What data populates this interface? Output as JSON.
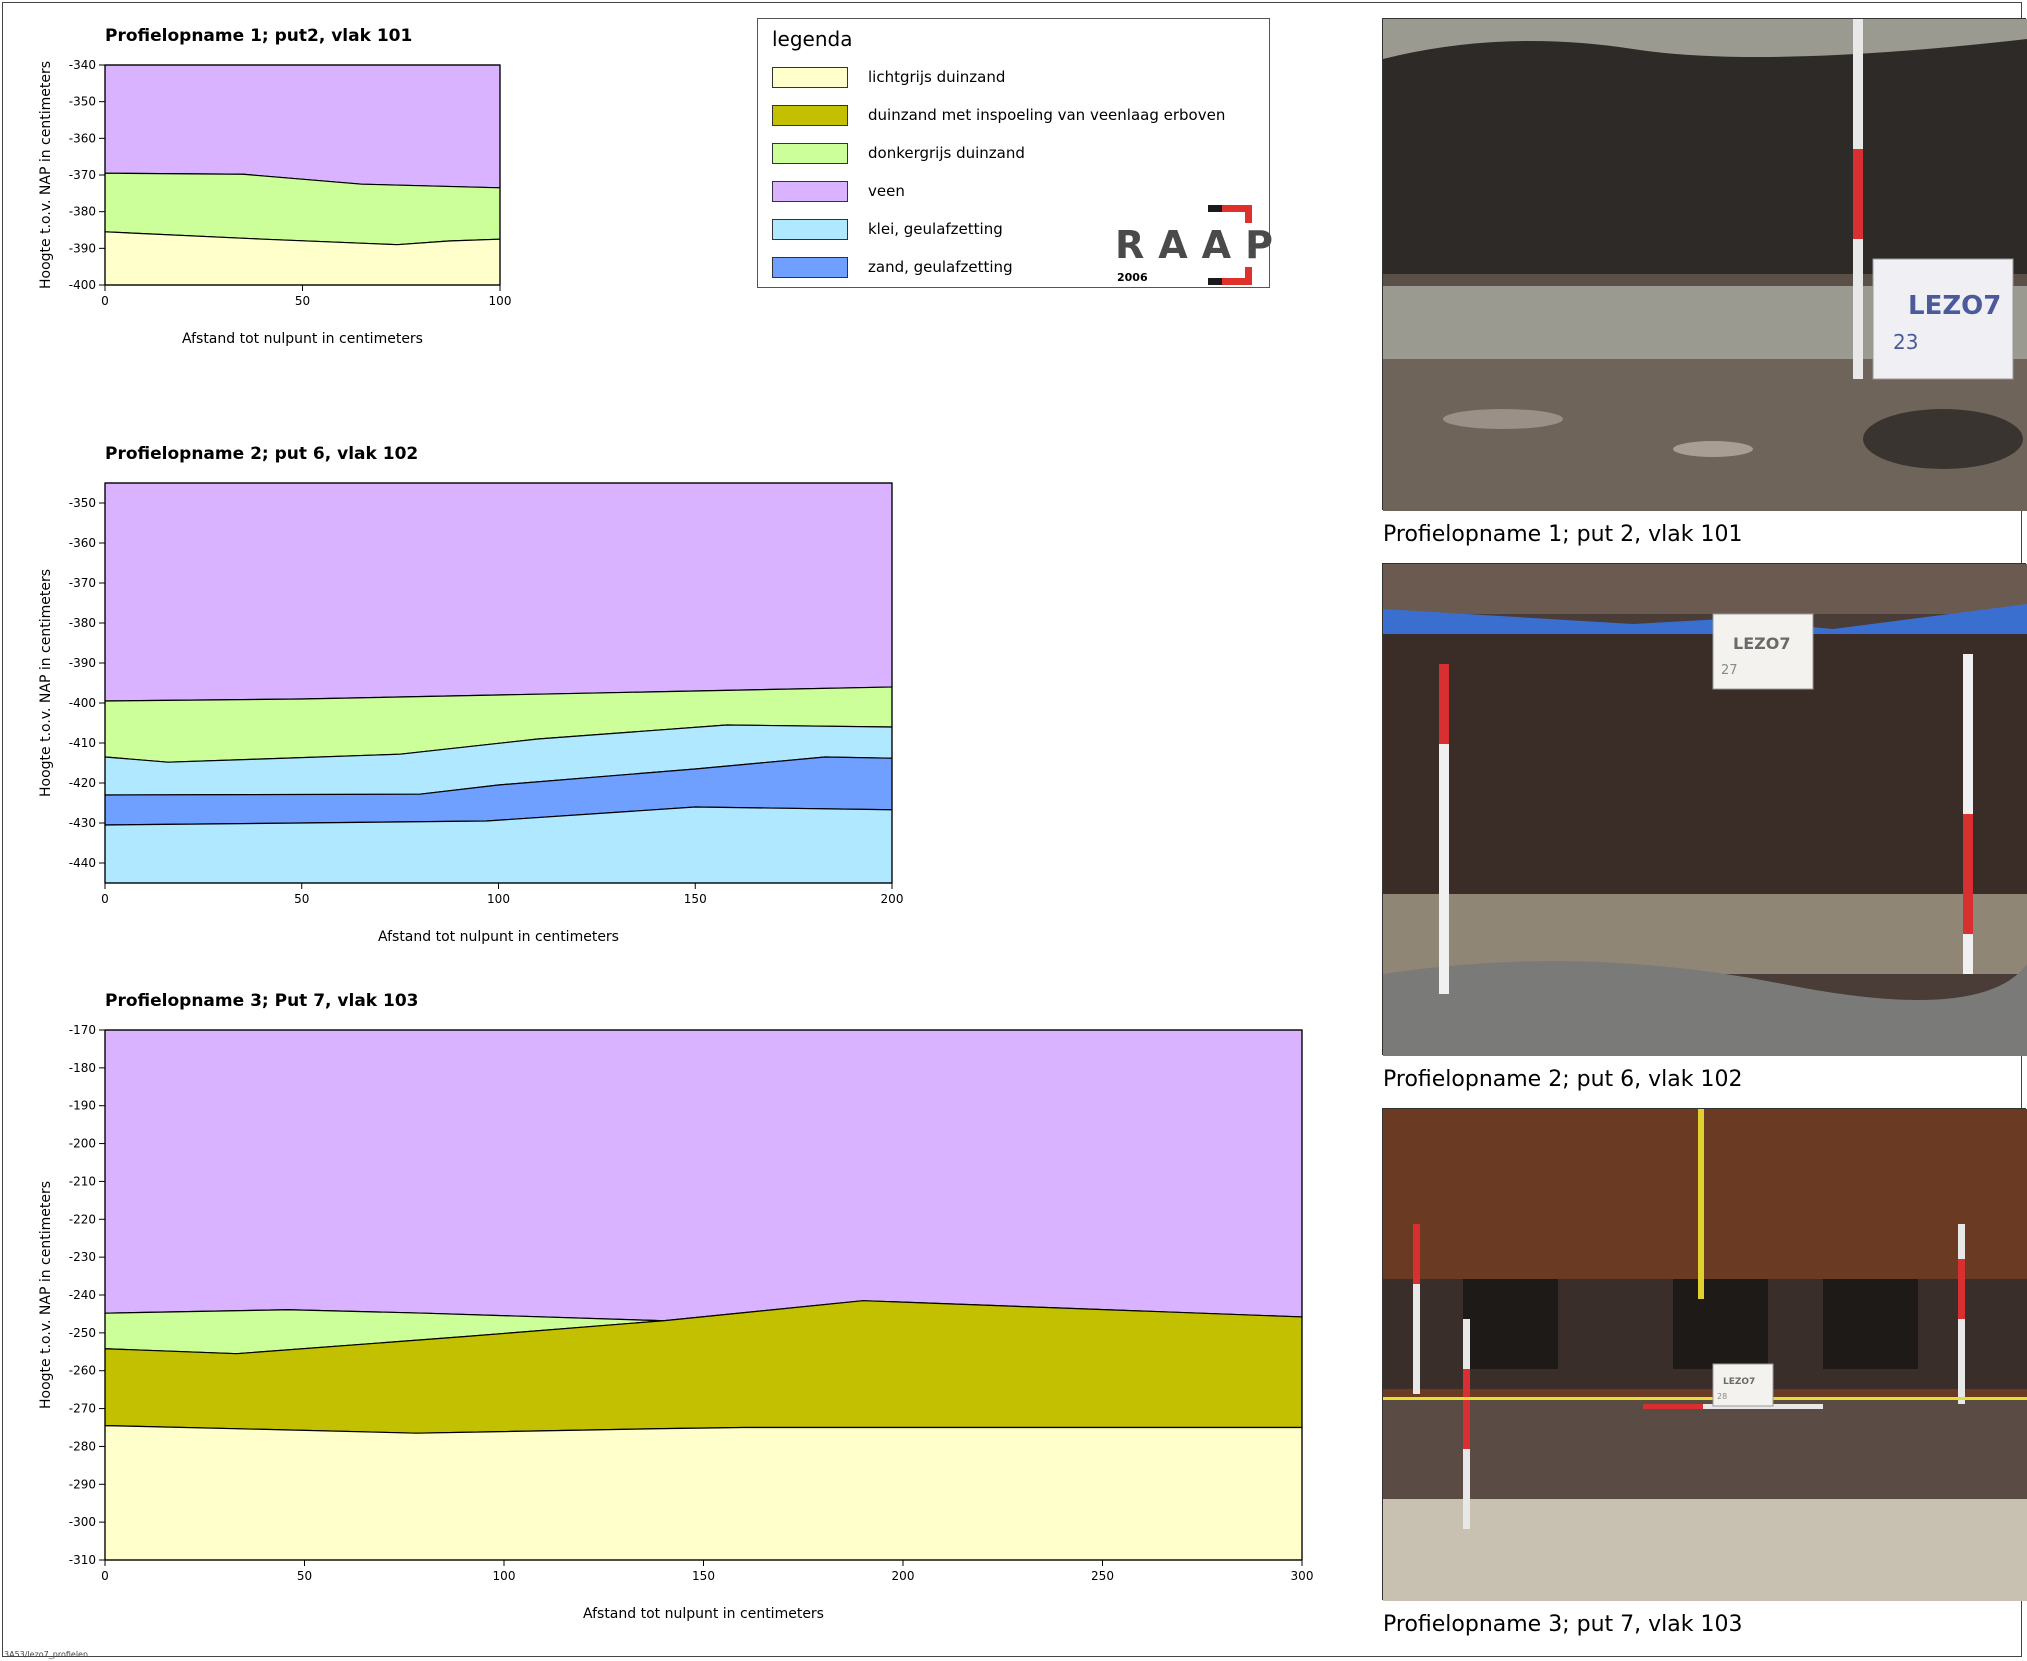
{
  "legend": {
    "title": "legenda",
    "items": [
      {
        "label": "lichtgrijs duinzand",
        "color": "#ffffcc"
      },
      {
        "label": "duinzand met inspoeling van veenlaag erboven",
        "color": "#c2c000"
      },
      {
        "label": "donkergrijs duinzand",
        "color": "#ccff99"
      },
      {
        "label": "veen",
        "color": "#d9b3ff"
      },
      {
        "label": "klei, geulafzetting",
        "color": "#b0e8ff"
      },
      {
        "label": "zand, geulafzetting",
        "color": "#6f9fff"
      }
    ]
  },
  "logo": {
    "word": "RAAP",
    "year": "2006",
    "accent": "#e0302a"
  },
  "photos": [
    {
      "caption": "Profielopname 1; put 2, vlak 101",
      "label_text": "LEZO7",
      "label_number": "23",
      "colors": {
        "sky": "#9a9a90",
        "soil": "#2e2a28",
        "water": "#6e645a"
      }
    },
    {
      "caption": "Profielopname 2; put 6, vlak 102",
      "label_text": "LEZO7",
      "label_number": "27",
      "colors": {
        "soil": "#3a2c26",
        "sand": "#8f8676",
        "tarp": "#3a6fd0"
      }
    },
    {
      "caption": "Profielopname 3; put 7, vlak 103",
      "label_text": "LEZO7",
      "label_number": "28",
      "colors": {
        "wall": "#6a3a22",
        "soil": "#3a2e2a",
        "floor": "#c8c0b0"
      }
    }
  ],
  "footer_code": "3A53/lezo7_profielen",
  "chart_data": [
    {
      "type": "area",
      "title": "Profielopname 1; put2, vlak 101",
      "xlabel": "Afstand tot nulpunt in centimeters",
      "ylabel": "Hoogte t.o.v. NAP in centimeters",
      "xlim": [
        0,
        100
      ],
      "ylim": [
        -400,
        -340
      ],
      "xticks": [
        0,
        50,
        100
      ],
      "yticks": [
        -340,
        -350,
        -360,
        -370,
        -380,
        -390,
        -400
      ],
      "layers": [
        {
          "name": "veen",
          "color": "#d9b3ff",
          "top": [
            [
              0,
              -340
            ],
            [
              100,
              -340
            ]
          ],
          "bottom": [
            [
              0,
              -369.5
            ],
            [
              35,
              -369.8
            ],
            [
              65,
              -372.5
            ],
            [
              100,
              -373.5
            ]
          ]
        },
        {
          "name": "donkergrijs duinzand",
          "color": "#ccff99",
          "top": [
            [
              0,
              -369.5
            ],
            [
              35,
              -369.8
            ],
            [
              65,
              -372.5
            ],
            [
              100,
              -373.5
            ]
          ],
          "bottom": [
            [
              0,
              -385.5
            ],
            [
              40,
              -387.5
            ],
            [
              74,
              -389
            ],
            [
              87,
              -388
            ],
            [
              100,
              -387.5
            ]
          ]
        },
        {
          "name": "lichtgrijs duinzand",
          "color": "#ffffcc",
          "top": [
            [
              0,
              -385.5
            ],
            [
              40,
              -387.5
            ],
            [
              74,
              -389
            ],
            [
              87,
              -388
            ],
            [
              100,
              -387.5
            ]
          ],
          "bottom": [
            [
              0,
              -400
            ],
            [
              100,
              -400
            ]
          ]
        }
      ]
    },
    {
      "type": "area",
      "title": "Profielopname 2; put 6, vlak 102",
      "xlabel": "Afstand tot nulpunt in centimeters",
      "ylabel": "Hoogte t.o.v. NAP in centimeters",
      "xlim": [
        0,
        200
      ],
      "ylim": [
        -445,
        -345
      ],
      "xticks": [
        0,
        50,
        100,
        150,
        200
      ],
      "yticks": [
        -350,
        -360,
        -370,
        -380,
        -390,
        -400,
        -410,
        -420,
        -430,
        -440
      ],
      "layers": [
        {
          "name": "veen",
          "color": "#d9b3ff",
          "top": [
            [
              0,
              -345
            ],
            [
              200,
              -345
            ]
          ],
          "bottom": [
            [
              0,
              -399.5
            ],
            [
              50,
              -399
            ],
            [
              100,
              -398
            ],
            [
              150,
              -397
            ],
            [
              200,
              -396
            ]
          ]
        },
        {
          "name": "donkergrijs duinzand",
          "color": "#ccff99",
          "top": [
            [
              0,
              -399.5
            ],
            [
              50,
              -399
            ],
            [
              100,
              -398
            ],
            [
              150,
              -397
            ],
            [
              200,
              -396
            ]
          ],
          "bottom": [
            [
              0,
              -413.5
            ],
            [
              16,
              -414.8
            ],
            [
              40,
              -414
            ],
            [
              75,
              -412.8
            ],
            [
              110,
              -409
            ],
            [
              158,
              -405.5
            ],
            [
              200,
              -406
            ]
          ]
        },
        {
          "name": "klei, geulafzetting",
          "color": "#b0e8ff",
          "top": [
            [
              0,
              -413.5
            ],
            [
              16,
              -414.8
            ],
            [
              40,
              -414
            ],
            [
              75,
              -412.8
            ],
            [
              110,
              -409
            ],
            [
              158,
              -405.5
            ],
            [
              200,
              -406
            ]
          ],
          "bottom": [
            [
              0,
              -423
            ],
            [
              80,
              -422.8
            ],
            [
              100,
              -420.5
            ],
            [
              150,
              -416.5
            ],
            [
              183,
              -413.5
            ],
            [
              200,
              -413.8
            ]
          ]
        },
        {
          "name": "zand, geulafzetting",
          "color": "#6f9fff",
          "top": [
            [
              0,
              -423
            ],
            [
              80,
              -422.8
            ],
            [
              100,
              -420.5
            ],
            [
              150,
              -416.5
            ],
            [
              183,
              -413.5
            ],
            [
              200,
              -413.8
            ]
          ],
          "bottom": [
            [
              0,
              -430.5
            ],
            [
              50,
              -430
            ],
            [
              97,
              -429.5
            ],
            [
              150,
              -426
            ],
            [
              200,
              -426.7
            ]
          ]
        },
        {
          "name": "klei, geulafzetting",
          "color": "#b0e8ff",
          "top": [
            [
              0,
              -430.5
            ],
            [
              50,
              -430
            ],
            [
              97,
              -429.5
            ],
            [
              150,
              -426
            ],
            [
              200,
              -426.7
            ]
          ],
          "bottom": [
            [
              0,
              -445
            ],
            [
              200,
              -445
            ]
          ]
        }
      ]
    },
    {
      "type": "area",
      "title": "Profielopname 3; Put 7, vlak 103",
      "xlabel": "Afstand tot nulpunt in centimeters",
      "ylabel": "Hoogte t.o.v. NAP in centimeters",
      "xlim": [
        0,
        300
      ],
      "ylim": [
        -310,
        -170
      ],
      "xticks": [
        0,
        50,
        100,
        150,
        200,
        250,
        300
      ],
      "yticks": [
        -170,
        -180,
        -190,
        -200,
        -210,
        -220,
        -230,
        -240,
        -250,
        -260,
        -270,
        -280,
        -290,
        -300,
        -310
      ],
      "layers": [
        {
          "name": "veen",
          "color": "#d9b3ff",
          "top": [
            [
              0,
              -170
            ],
            [
              300,
              -170
            ]
          ],
          "bottom": [
            [
              0,
              -244.8
            ],
            [
              46,
              -243.9
            ],
            [
              80,
              -244.8
            ],
            [
              140,
              -246.8
            ],
            [
              190,
              -241.5
            ],
            [
              300,
              -245.8
            ]
          ]
        },
        {
          "name": "donkergrijs duinzand",
          "color": "#ccff99",
          "top": [
            [
              0,
              -244.8
            ],
            [
              46,
              -243.9
            ],
            [
              80,
              -244.8
            ],
            [
              140,
              -246.8
            ]
          ],
          "bottom": [
            [
              0,
              -254.2
            ],
            [
              33,
              -255.5
            ],
            [
              90,
              -251
            ],
            [
              140,
              -246.8
            ]
          ]
        },
        {
          "name": "duinzand met inspoeling van veenlaag erboven",
          "color": "#c2c000",
          "top": [
            [
              0,
              -254.2
            ],
            [
              33,
              -255.5
            ],
            [
              90,
              -251
            ],
            [
              140,
              -246.8
            ],
            [
              190,
              -241.5
            ],
            [
              300,
              -245.8
            ]
          ],
          "bottom": [
            [
              0,
              -274.5
            ],
            [
              40,
              -275.5
            ],
            [
              78,
              -276.5
            ],
            [
              140,
              -275.3
            ],
            [
              160,
              -275
            ],
            [
              300,
              -275
            ]
          ]
        },
        {
          "name": "lichtgrijs duinzand",
          "color": "#ffffcc",
          "top": [
            [
              0,
              -274.5
            ],
            [
              40,
              -275.5
            ],
            [
              78,
              -276.5
            ],
            [
              140,
              -275.3
            ],
            [
              160,
              -275
            ],
            [
              300,
              -275
            ]
          ],
          "bottom": [
            [
              0,
              -310
            ],
            [
              300,
              -310
            ]
          ]
        }
      ]
    }
  ]
}
